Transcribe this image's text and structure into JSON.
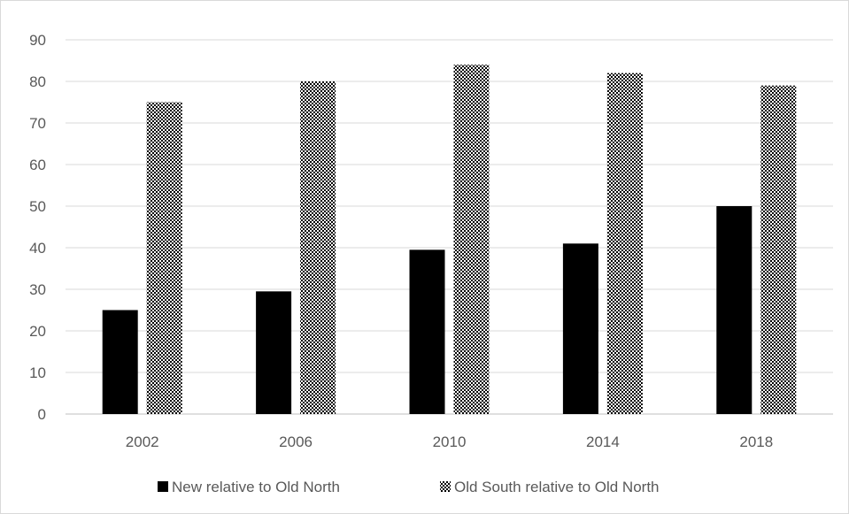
{
  "chart_data": {
    "type": "bar",
    "title": "",
    "xlabel": "",
    "ylabel": "",
    "ylim": [
      0,
      90
    ],
    "yticks": [
      0,
      10,
      20,
      30,
      40,
      50,
      60,
      70,
      80,
      90
    ],
    "grid": true,
    "legend_position": "bottom",
    "categories": [
      "2002",
      "2006",
      "2010",
      "2014",
      "2018"
    ],
    "series": [
      {
        "name": "New relative to Old North",
        "values": [
          25,
          29.5,
          39.5,
          41,
          50
        ],
        "color": "#000000",
        "pattern": "solid"
      },
      {
        "name": "Old South relative to Old North",
        "values": [
          75,
          80,
          84,
          82,
          79
        ],
        "color": "#000000",
        "pattern": "checker"
      }
    ]
  }
}
